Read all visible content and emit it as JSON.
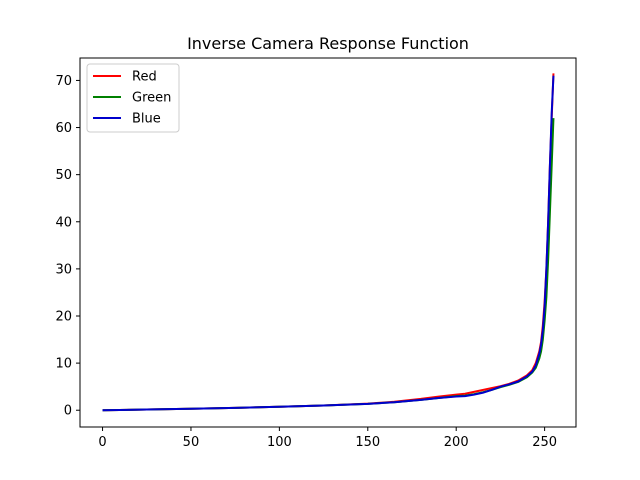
{
  "chart_data": {
    "type": "line",
    "title": "Inverse Camera Response Function",
    "xlabel": "",
    "ylabel": "",
    "xlim": [
      -12.75,
      267.75
    ],
    "ylim": [
      -3.56,
      74.76
    ],
    "xticks": [
      0,
      50,
      100,
      150,
      200,
      250
    ],
    "yticks": [
      0,
      10,
      20,
      30,
      40,
      50,
      60,
      70
    ],
    "grid": false,
    "legend_position": "upper left",
    "series": [
      {
        "name": "Red",
        "color": "#ff0000",
        "x": [
          0,
          25,
          50,
          75,
          100,
          125,
          150,
          165,
          180,
          190,
          200,
          205,
          210,
          215,
          220,
          225,
          230,
          235,
          240,
          243,
          245,
          247,
          248,
          249,
          250,
          251,
          252,
          253,
          254,
          255
        ],
        "y": [
          0,
          0.15,
          0.3,
          0.5,
          0.75,
          1.0,
          1.4,
          1.8,
          2.4,
          2.9,
          3.3,
          3.5,
          3.9,
          4.3,
          4.7,
          5.1,
          5.6,
          6.3,
          7.4,
          8.5,
          10.0,
          12.5,
          14.5,
          18.0,
          23.0,
          30.0,
          40.0,
          52.0,
          62.0,
          71.5
        ]
      },
      {
        "name": "Green",
        "color": "#008000",
        "x": [
          0,
          25,
          50,
          75,
          100,
          125,
          150,
          165,
          180,
          190,
          200,
          205,
          210,
          215,
          220,
          225,
          230,
          235,
          240,
          243,
          245,
          247,
          248,
          249,
          250,
          251,
          252,
          253,
          254,
          255
        ],
        "y": [
          0,
          0.15,
          0.3,
          0.5,
          0.75,
          1.0,
          1.35,
          1.7,
          2.2,
          2.6,
          3.0,
          3.1,
          3.4,
          3.8,
          4.3,
          4.9,
          5.4,
          6.0,
          7.0,
          8.0,
          9.0,
          11.0,
          12.5,
          15.0,
          19.0,
          24.0,
          32.0,
          42.0,
          52.0,
          62.0
        ]
      },
      {
        "name": "Blue",
        "color": "#0000cc",
        "x": [
          0,
          25,
          50,
          75,
          100,
          125,
          150,
          165,
          180,
          190,
          200,
          205,
          210,
          215,
          220,
          225,
          230,
          235,
          240,
          243,
          245,
          247,
          248,
          249,
          250,
          251,
          252,
          253,
          254,
          255
        ],
        "y": [
          0,
          0.15,
          0.3,
          0.5,
          0.75,
          1.0,
          1.35,
          1.7,
          2.2,
          2.6,
          2.9,
          3.0,
          3.3,
          3.7,
          4.3,
          5.0,
          5.5,
          6.1,
          7.2,
          8.2,
          9.5,
          12.0,
          14.0,
          17.0,
          22.0,
          30.0,
          40.0,
          52.0,
          63.0,
          71.0
        ]
      }
    ]
  }
}
